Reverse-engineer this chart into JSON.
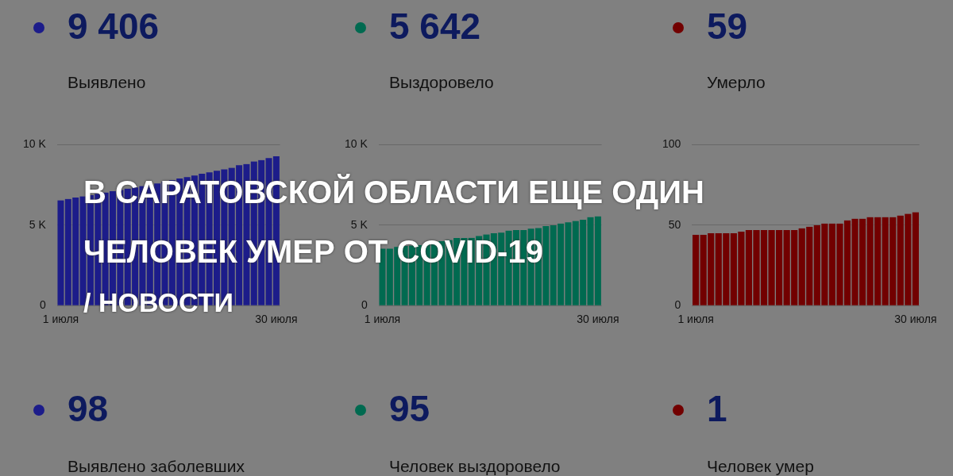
{
  "chart_data": [
    {
      "type": "bar",
      "color": "#1c1c8a",
      "annotations": [
        "9 406",
        "Выявлено",
        "98",
        "Выявлено заболевших"
      ],
      "categories": [
        "1 июля",
        null,
        null,
        null,
        null,
        null,
        null,
        null,
        null,
        null,
        null,
        null,
        null,
        null,
        null,
        null,
        null,
        null,
        null,
        null,
        null,
        null,
        null,
        null,
        null,
        null,
        null,
        null,
        null,
        "30 июля"
      ],
      "values": [
        6540,
        6630,
        6710,
        6790,
        6870,
        6950,
        7030,
        7110,
        7190,
        7270,
        7350,
        7430,
        7510,
        7590,
        7700,
        7800,
        7900,
        7990,
        8090,
        8190,
        8280,
        8380,
        8470,
        8560,
        8720,
        8800,
        8960,
        9040,
        9170,
        9280
      ],
      "ylim": [
        0,
        10000
      ],
      "yticks": [
        {
          "value": 0,
          "label": "0"
        },
        {
          "value": 5000,
          "label": "5 K"
        },
        {
          "value": 10000,
          "label": "10 K"
        }
      ],
      "grid": "y"
    },
    {
      "type": "bar",
      "color": "#006a50",
      "annotations": [
        "5 642",
        "Выздоровело",
        "95",
        "Человек выздоровело"
      ],
      "categories": [
        "1 июля",
        null,
        null,
        null,
        null,
        null,
        null,
        null,
        null,
        null,
        null,
        null,
        null,
        null,
        null,
        null,
        null,
        null,
        null,
        null,
        null,
        null,
        null,
        null,
        null,
        null,
        null,
        null,
        null,
        "30 июля"
      ],
      "values": [
        3540,
        3540,
        3650,
        3710,
        3730,
        3760,
        3860,
        3940,
        4000,
        4080,
        4200,
        4200,
        4210,
        4330,
        4420,
        4500,
        4540,
        4660,
        4700,
        4700,
        4780,
        4820,
        4940,
        4990,
        5100,
        5180,
        5260,
        5340,
        5500,
        5550
      ],
      "ylim": [
        0,
        10000
      ],
      "yticks": [
        {
          "value": 0,
          "label": "0"
        },
        {
          "value": 5000,
          "label": "5 K"
        },
        {
          "value": 10000,
          "label": "10 K"
        }
      ],
      "grid": "y"
    },
    {
      "type": "bar",
      "color": "#720000",
      "annotations": [
        "59",
        "Умерло",
        "1",
        "Человек умер"
      ],
      "categories": [
        "1 июля",
        null,
        null,
        null,
        null,
        null,
        null,
        null,
        null,
        null,
        null,
        null,
        null,
        null,
        null,
        null,
        null,
        null,
        null,
        null,
        null,
        null,
        null,
        null,
        null,
        null,
        null,
        null,
        null,
        "30 июля"
      ],
      "values": [
        44,
        44,
        45,
        45,
        45,
        45,
        46,
        47,
        47,
        47,
        47,
        47,
        47,
        47,
        48,
        49,
        50,
        51,
        51,
        51,
        53,
        54,
        54,
        55,
        55,
        55,
        55,
        56,
        57,
        58
      ],
      "ylim": [
        0,
        100
      ],
      "yticks": [
        0,
        50,
        100
      ],
      "grid": "y"
    },
    {
      "type": "other",
      "title": "В САРАТОВСКОЙ ОБЛАСТИ ЕЩЕ ОДИН ЧЕЛОВЕК УМЕР ОТ COVID-19",
      "subtitle": "/ НОВОСТИ"
    }
  ]
}
